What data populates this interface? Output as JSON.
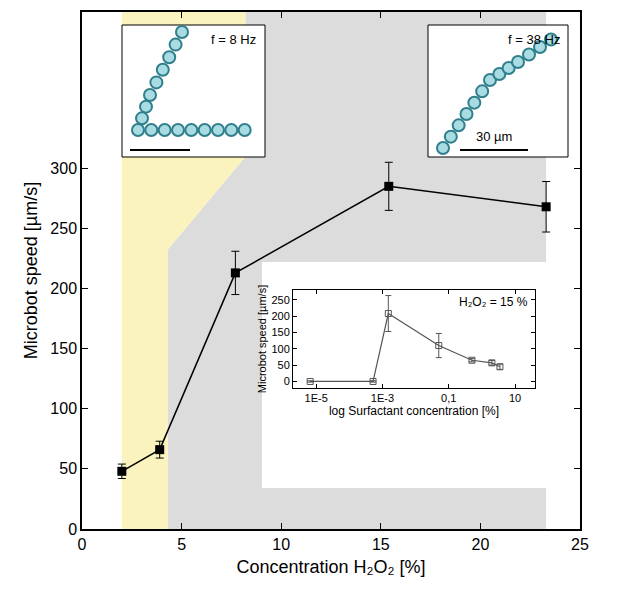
{
  "chart_data": [
    {
      "type": "line",
      "x_label": "Concentration H₂O₂ [%]",
      "y_label": "Microbot speed [µm/s]",
      "x": [
        2,
        3.9,
        7.7,
        15.4,
        23.3
      ],
      "values": [
        48,
        66,
        213,
        285,
        268
      ],
      "errors": [
        6,
        7,
        18,
        20,
        21
      ],
      "xlim": [
        0,
        25
      ],
      "xticks": [
        0,
        5,
        10,
        15,
        20,
        25
      ],
      "ylim": [
        0,
        430
      ],
      "yticks": [
        0,
        50,
        100,
        150,
        200,
        250,
        300
      ],
      "color": "#000000",
      "marker": "square",
      "annotations": [
        "f = 8 Hz",
        "f = 38 Hz",
        "30 µm"
      ]
    },
    {
      "type": "line",
      "log": "x",
      "x_label": "log Surfactant concentration [%]",
      "y_label": "Microbot speed [µm/s]",
      "annotations": [
        "H₂O₂ = 15 %"
      ],
      "x": [
        6.6e-06,
        0.00052,
        0.0015,
        0.05,
        0.5,
        2,
        3.5
      ],
      "values": [
        0,
        0,
        208,
        110,
        65,
        57,
        45
      ],
      "errors": [
        2,
        2,
        55,
        37,
        5,
        7,
        8
      ],
      "xlim": [
        2e-06,
        40
      ],
      "xticks": [
        {
          "value": 1e-05,
          "label": "1E-5"
        },
        {
          "value": 0.001,
          "label": "1E-3"
        },
        {
          "value": 0.1,
          "label": "0,1"
        },
        10
      ],
      "ylim": [
        -20,
        280
      ],
      "yticks": [
        0,
        50,
        100,
        150,
        200,
        250
      ],
      "color": "#555555",
      "marker": "open square"
    }
  ]
}
